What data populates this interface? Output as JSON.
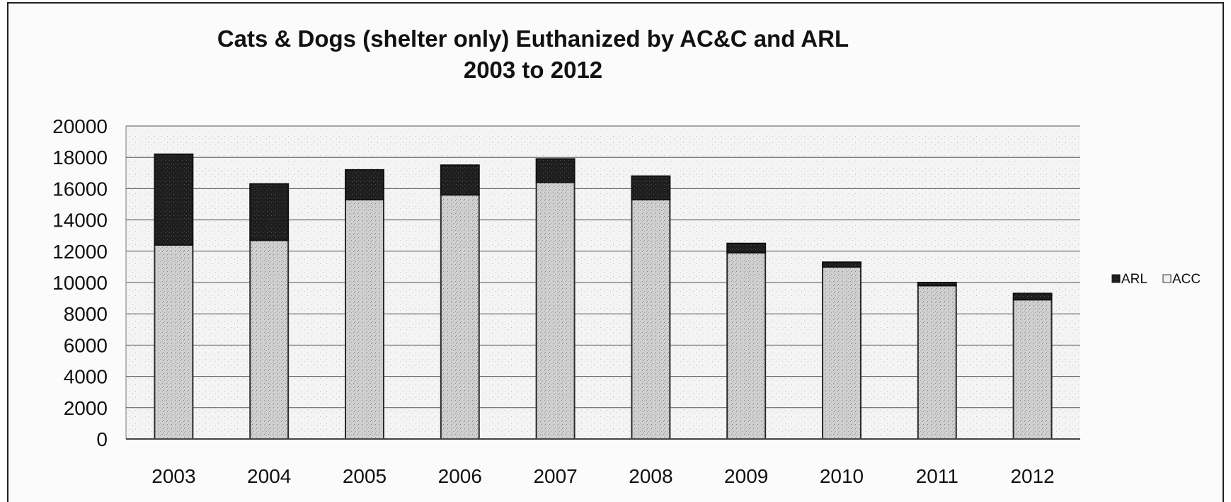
{
  "chart_data": {
    "type": "bar",
    "stacked": true,
    "title": "Cats & Dogs (shelter only) Euthanized by AC&C and ARL",
    "subtitle": "2003 to 2012",
    "xlabel": "",
    "ylabel": "",
    "categories": [
      "2003",
      "2004",
      "2005",
      "2006",
      "2007",
      "2008",
      "2009",
      "2010",
      "2011",
      "2012"
    ],
    "series": [
      {
        "name": "ACC",
        "color": "#c8c8c8",
        "values": [
          12400,
          12700,
          15300,
          15600,
          16400,
          15300,
          11900,
          11000,
          9800,
          8900
        ]
      },
      {
        "name": "ARL",
        "color": "#222222",
        "values": [
          5800,
          3600,
          1900,
          1900,
          1500,
          1500,
          600,
          300,
          200,
          400
        ]
      }
    ],
    "ylim": [
      0,
      20000
    ],
    "yticks": [
      "0",
      "2000",
      "4000",
      "6000",
      "8000",
      "10000",
      "12000",
      "14000",
      "16000",
      "18000",
      "20000"
    ],
    "grid": true,
    "legend": {
      "placement": "right",
      "entries": [
        "ARL",
        "ACC"
      ]
    }
  }
}
